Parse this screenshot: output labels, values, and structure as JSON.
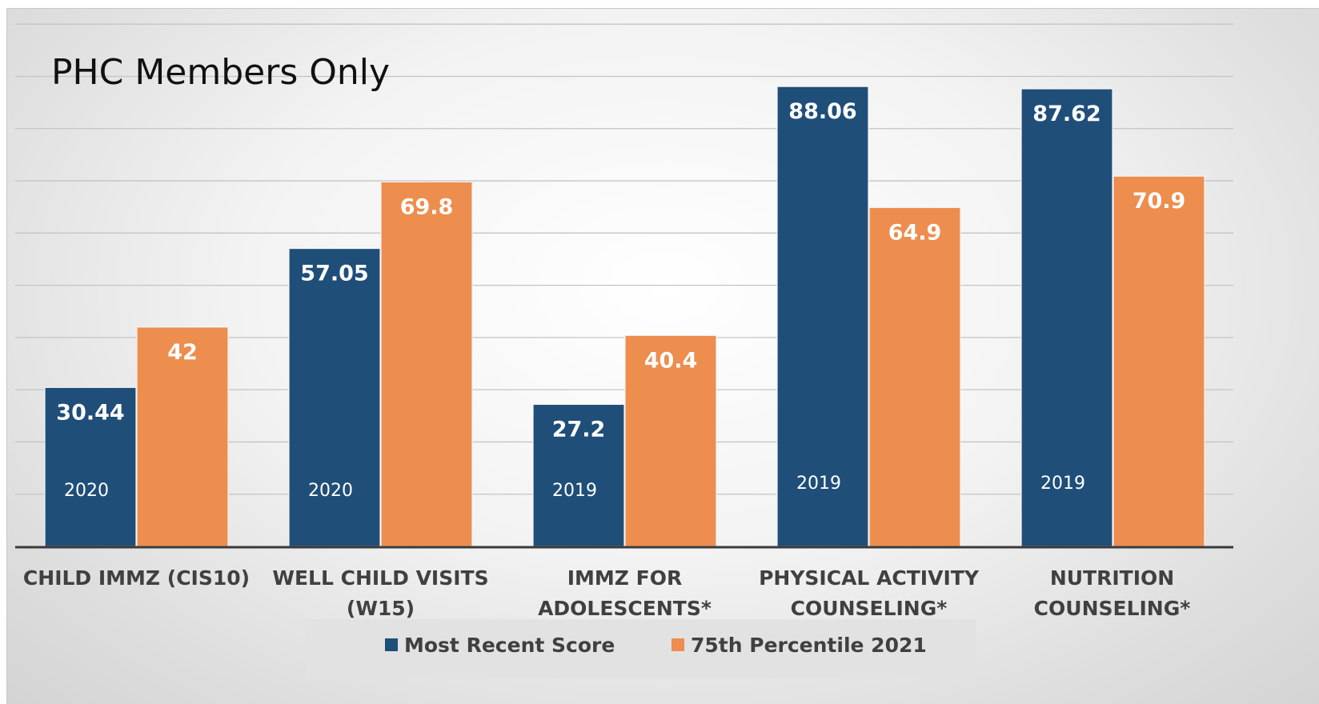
{
  "chart_data": {
    "type": "bar",
    "title": "PHC Members Only",
    "categories": [
      [
        "CHILD IMMZ (CIS10)"
      ],
      [
        "WELL CHILD VISITS",
        "(W15)"
      ],
      [
        "IMMZ FOR",
        "ADOLESCENTS*"
      ],
      [
        "PHYSICAL ACTIVITY",
        "COUNSELING*"
      ],
      [
        "NUTRITION",
        "COUNSELING*"
      ]
    ],
    "series": [
      {
        "name": "Most Recent Score",
        "color": "#1f4e79",
        "values": [
          30.44,
          57.05,
          27.2,
          88.06,
          87.62
        ],
        "value_labels": [
          "30.44",
          "57.05",
          "27.2",
          "88.06",
          "87.62"
        ],
        "year_labels": [
          "2020",
          "2020",
          "2019",
          "2019",
          "2019"
        ]
      },
      {
        "name": "75th Percentile 2021",
        "color": "#ed8d4e",
        "values": [
          42,
          69.8,
          40.4,
          64.9,
          70.9
        ],
        "value_labels": [
          "42",
          "69.8",
          "40.4",
          "64.9",
          "70.9"
        ]
      }
    ],
    "ylim": [
      0,
      100
    ],
    "grid": true,
    "legend": "bottom"
  }
}
